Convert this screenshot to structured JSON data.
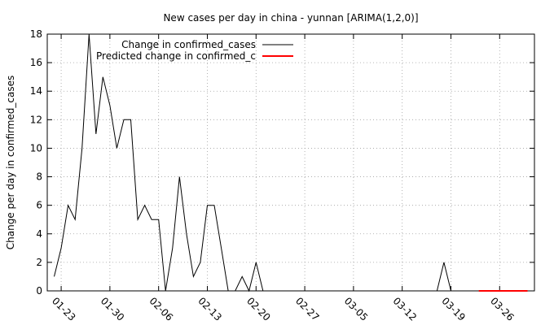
{
  "chart_data": {
    "type": "line",
    "title": "New cases per day in china - yunnan [ARIMA(1,2,0)]",
    "xlabel": "",
    "ylabel": "Change per day in confirmed_cases",
    "ylim": [
      0,
      18
    ],
    "yticks": [
      "0",
      "2",
      "4",
      "6",
      "8",
      "10",
      "12",
      "14",
      "16",
      "18"
    ],
    "xlim": [
      "01-21",
      "03-31"
    ],
    "xticks": [
      "01-23",
      "01-30",
      "02-06",
      "02-13",
      "02-20",
      "02-27",
      "03-05",
      "03-12",
      "03-19",
      "03-26"
    ],
    "grid": true,
    "legend_position": "top-left",
    "series": [
      {
        "name": "Change in confirmed_cases",
        "color": "#000000",
        "x": [
          "01-22",
          "01-23",
          "01-24",
          "01-25",
          "01-26",
          "01-27",
          "01-28",
          "01-29",
          "01-30",
          "01-31",
          "02-01",
          "02-02",
          "02-03",
          "02-04",
          "02-05",
          "02-06",
          "02-07",
          "02-08",
          "02-09",
          "02-10",
          "02-11",
          "02-12",
          "02-13",
          "02-14",
          "02-15",
          "02-16",
          "02-17",
          "02-18",
          "02-19",
          "02-20",
          "02-21",
          "02-22",
          "02-23",
          "02-24",
          "02-25",
          "02-26",
          "02-27",
          "02-28",
          "02-29",
          "03-01",
          "03-02",
          "03-03",
          "03-04",
          "03-05",
          "03-06",
          "03-07",
          "03-08",
          "03-09",
          "03-10",
          "03-11",
          "03-12",
          "03-13",
          "03-14",
          "03-15",
          "03-16",
          "03-17",
          "03-18",
          "03-19",
          "03-20",
          "03-21",
          "03-22",
          "03-23",
          "03-24",
          "03-25",
          "03-26",
          "03-27",
          "03-28",
          "03-29",
          "03-30"
        ],
        "values": [
          1,
          3,
          6,
          5,
          10,
          18,
          11,
          15,
          13,
          10,
          12,
          12,
          5,
          6,
          5,
          5,
          0,
          3,
          8,
          4,
          1,
          2,
          6,
          6,
          3,
          0,
          0,
          1,
          0,
          2,
          0,
          0,
          0,
          0,
          0,
          0,
          0,
          0,
          0,
          0,
          0,
          0,
          0,
          0,
          0,
          0,
          0,
          0,
          0,
          0,
          0,
          0,
          0,
          0,
          0,
          0,
          2,
          0,
          0,
          0,
          0,
          0,
          0,
          0,
          0,
          0,
          0,
          0,
          0
        ]
      },
      {
        "name": "Predicted change in confirmed_c",
        "color": "#ff0000",
        "x": [
          "03-23",
          "03-24",
          "03-25",
          "03-26",
          "03-27",
          "03-28",
          "03-29",
          "03-30"
        ],
        "values": [
          0,
          0,
          0,
          0,
          0,
          0,
          0,
          0
        ]
      }
    ]
  }
}
